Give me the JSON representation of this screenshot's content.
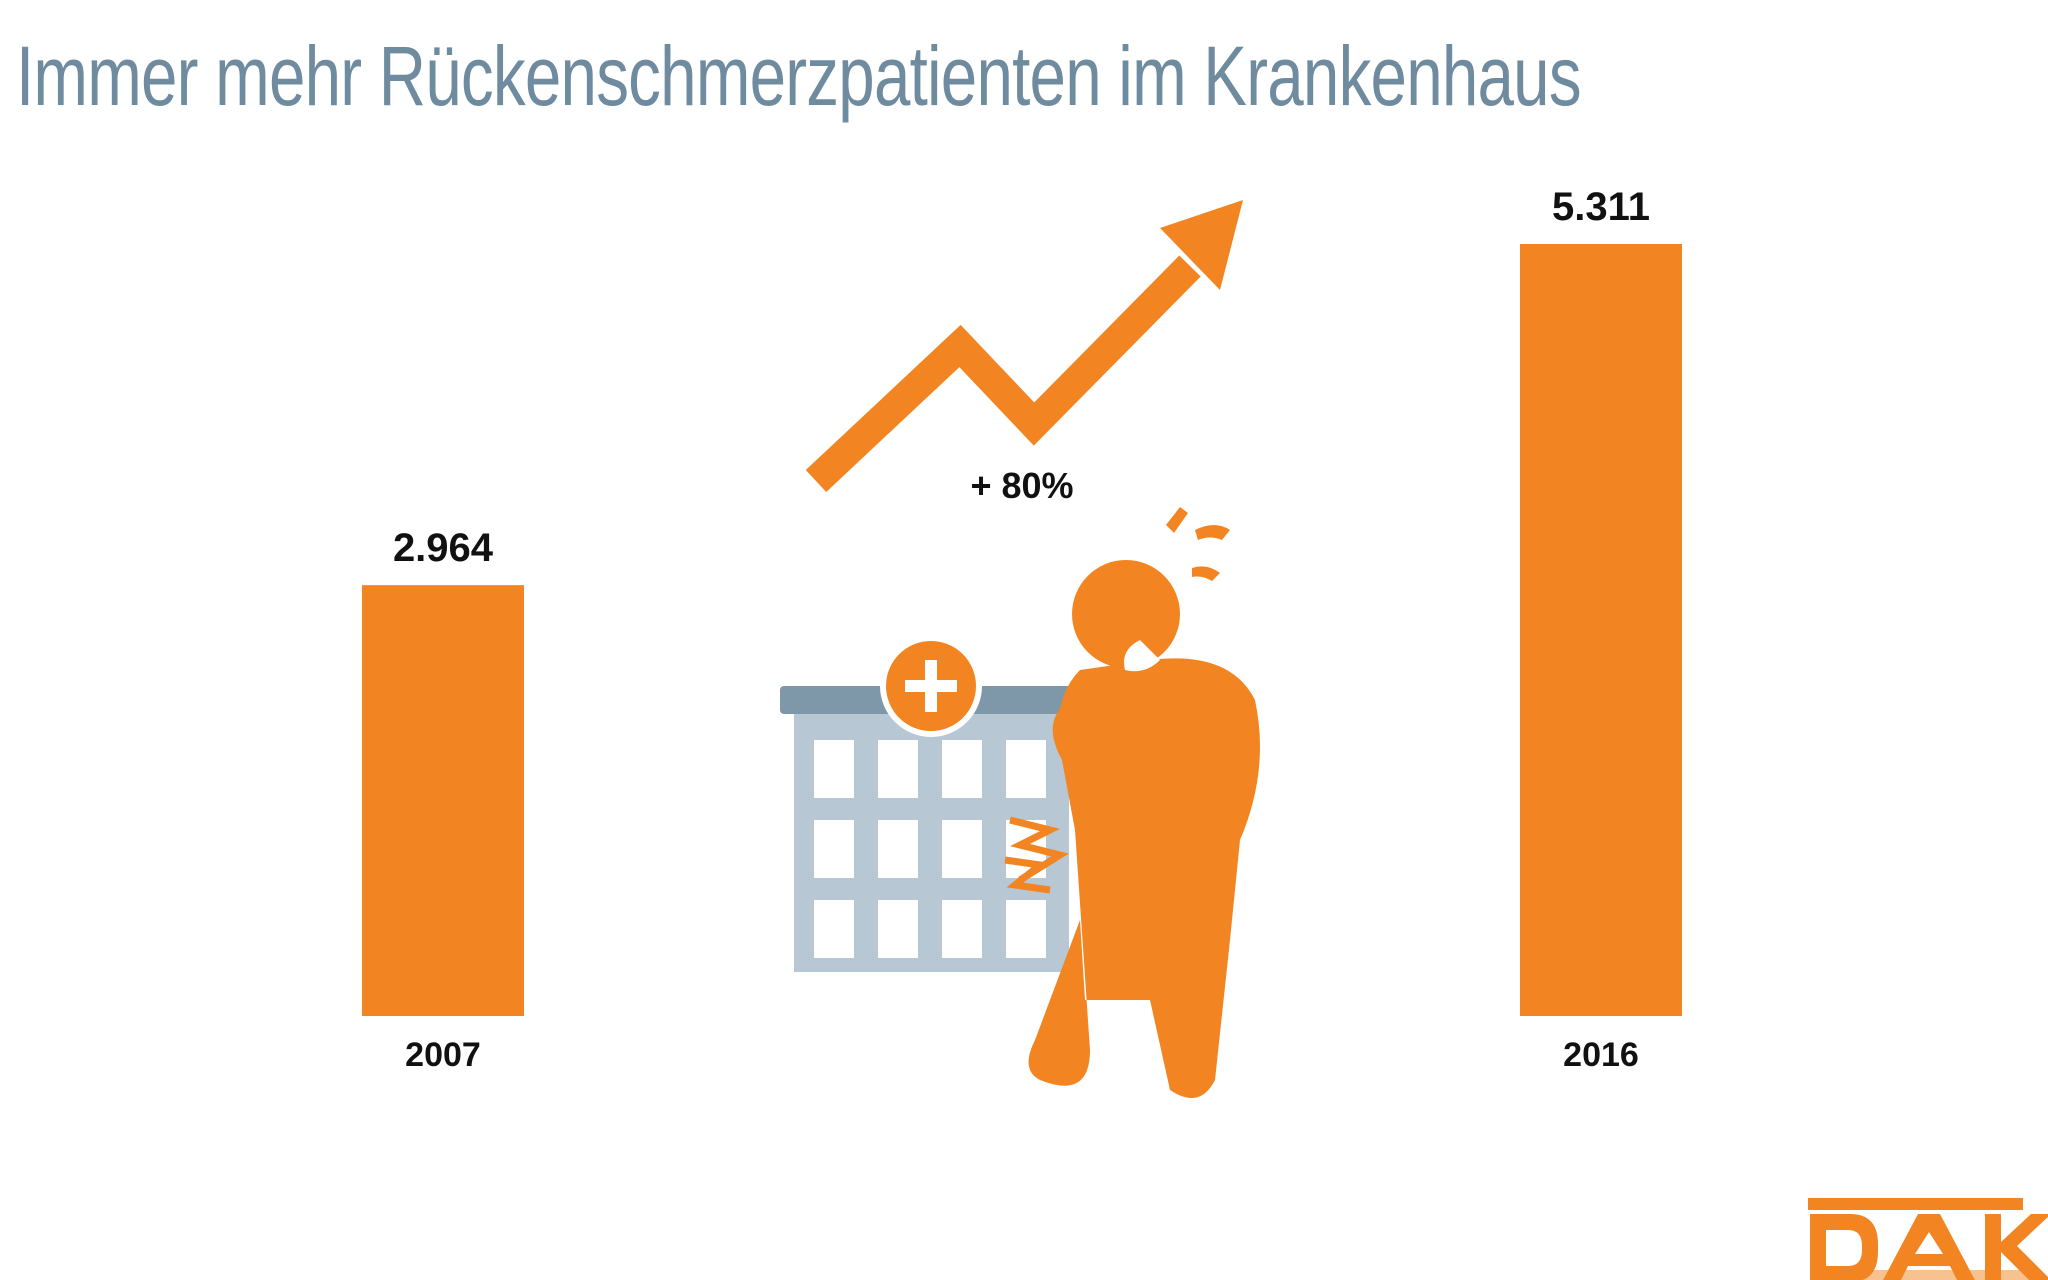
{
  "title": "Immer mehr Rückenschmerzpatienten im Krankenhaus",
  "colors": {
    "bar": "#f28522",
    "title": "#6f8b9f",
    "building": "#b7c7d3",
    "building_roof": "#7e97a9"
  },
  "chart_data": {
    "type": "bar",
    "title": "Immer mehr Rückenschmerzpatienten im Krankenhaus",
    "categories": [
      "2007",
      "2016"
    ],
    "values": [
      2964,
      5311
    ],
    "value_labels": [
      "2.964",
      "5.311"
    ],
    "annotation": "+ 80%",
    "grid": false,
    "legend": "none",
    "ylim": [
      0,
      5311
    ]
  },
  "logo": {
    "text": "DAK"
  },
  "icons": [
    "trend-arrow-icon",
    "hospital-icon",
    "back-pain-person-icon"
  ]
}
